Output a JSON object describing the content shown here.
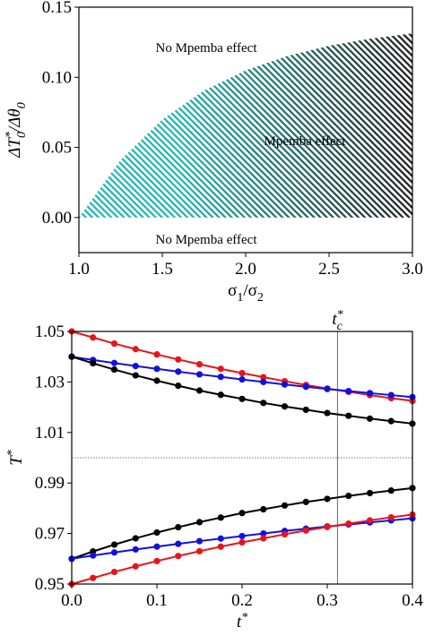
{
  "chart_data": [
    {
      "type": "area",
      "x": [
        1,
        1.25,
        1.5,
        1.75,
        2,
        2.25,
        2.5,
        2.75,
        3
      ],
      "values": [
        0,
        0.041,
        0.07,
        0.0905,
        0.105,
        0.1152,
        0.1225,
        0.1276,
        0.1313
      ],
      "hatch_colors": [
        "#1fb5b0",
        "#1a1a1a"
      ],
      "xlim": [
        1,
        3
      ],
      "ylim": [
        -0.025,
        0.15
      ],
      "xticks": [
        {
          "value": 1,
          "label": "1.0"
        },
        1.5,
        {
          "value": 2,
          "label": "2.0"
        },
        2.5,
        {
          "value": 3,
          "label": "3.0"
        }
      ],
      "yticks": [
        {
          "value": 0,
          "label": "0.00"
        },
        {
          "value": 0.05,
          "label": "0.05"
        },
        {
          "value": 0.1,
          "label": "0.10"
        },
        {
          "value": 0.15,
          "label": "0.15"
        }
      ],
      "xlabel": [
        {
          "text": "σ"
        },
        {
          "text": "1",
          "pos": "sub"
        },
        {
          "text": "/σ"
        },
        {
          "text": "2",
          "pos": "sub"
        }
      ],
      "ylabel": [
        {
          "text": "ΔT"
        },
        {
          "text": "*",
          "pos": "sup"
        },
        {
          "text": "0",
          "pos": "sub"
        },
        {
          "text": "/Δθ"
        },
        {
          "text": "0",
          "pos": "sub"
        }
      ],
      "annotations": [
        "No Mpemba effect",
        "Mpemba effect",
        "No Mpemba effect"
      ]
    },
    {
      "type": "line",
      "x": [
        0,
        0.025,
        0.05,
        0.075,
        0.1,
        0.125,
        0.15,
        0.175,
        0.2,
        0.225,
        0.25,
        0.275,
        0.3,
        0.325,
        0.35,
        0.375,
        0.4
      ],
      "series": [
        {
          "color": "#e8141c",
          "values": [
            1.05,
            1.0476,
            1.0452,
            1.043,
            1.0409,
            1.0389,
            1.037,
            1.0352,
            1.0335,
            1.0319,
            1.0303,
            1.0288,
            1.0274,
            1.0261,
            1.0248,
            1.0236,
            1.0225
          ]
        },
        {
          "color": "#1010e0",
          "values": [
            1.04,
            1.0387,
            1.0375,
            1.0363,
            1.0352,
            1.0341,
            1.033,
            1.032,
            1.031,
            1.03,
            1.029,
            1.0281,
            1.0272,
            1.0264,
            1.0256,
            1.0248,
            1.024
          ]
        },
        {
          "color": "#000000",
          "values": [
            1.04,
            1.0374,
            1.0349,
            1.0326,
            1.0305,
            1.0285,
            1.0266,
            1.0249,
            1.0233,
            1.0217,
            1.0203,
            1.019,
            1.0177,
            1.0166,
            1.0155,
            1.0145,
            1.0135
          ]
        },
        {
          "color": "#000000",
          "values": [
            0.96,
            0.9629,
            0.9656,
            0.9681,
            0.9704,
            0.9725,
            0.9745,
            0.9763,
            0.9781,
            0.9796,
            0.9811,
            0.9825,
            0.9837,
            0.9849,
            0.986,
            0.987,
            0.988
          ]
        },
        {
          "color": "#1010e0",
          "values": [
            0.96,
            0.9613,
            0.9625,
            0.9637,
            0.9648,
            0.9659,
            0.967,
            0.968,
            0.969,
            0.97,
            0.971,
            0.9719,
            0.9728,
            0.9736,
            0.9744,
            0.9752,
            0.976
          ]
        },
        {
          "color": "#e8141c",
          "values": [
            0.95,
            0.9524,
            0.9548,
            0.957,
            0.9591,
            0.9611,
            0.963,
            0.9648,
            0.9665,
            0.9681,
            0.9697,
            0.9712,
            0.9726,
            0.9739,
            0.9752,
            0.9764,
            0.9775
          ]
        }
      ],
      "xlim": [
        0,
        0.4
      ],
      "ylim": [
        0.95,
        1.05
      ],
      "xticks": [
        {
          "value": 0,
          "label": "0.0"
        },
        0.1,
        0.2,
        0.3,
        0.4
      ],
      "yticks": [
        0.95,
        0.97,
        0.99,
        1.01,
        1.03,
        1.05
      ],
      "hline": 1,
      "vline": {
        "value": 0.312,
        "label": [
          {
            "text": "t"
          },
          {
            "text": "*",
            "pos": "sup"
          },
          {
            "text": "c",
            "pos": "sub"
          }
        ]
      },
      "xlabel": [
        {
          "text": "t"
        },
        {
          "text": "*",
          "pos": "sup"
        }
      ],
      "ylabel": [
        {
          "text": "T"
        },
        {
          "text": "*",
          "pos": "sup"
        }
      ]
    }
  ]
}
